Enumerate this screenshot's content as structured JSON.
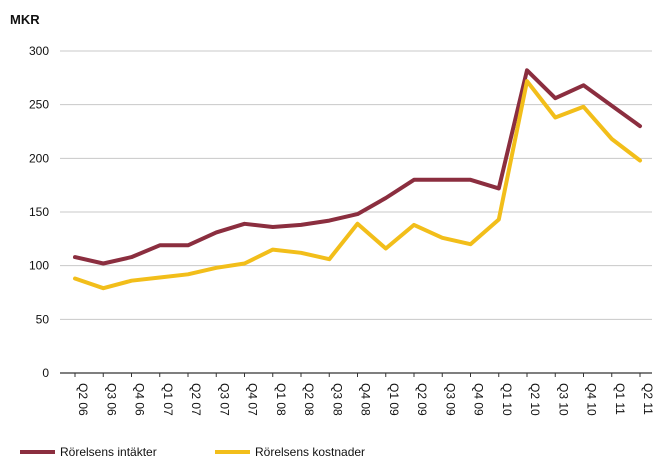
{
  "chart_data": {
    "type": "line",
    "title": "",
    "xlabel": "",
    "ylabel": "MKR",
    "ylim": [
      0,
      300
    ],
    "yticks": [
      0,
      50,
      100,
      150,
      200,
      250,
      300
    ],
    "grid": true,
    "legend_position": "bottom-left",
    "categories": [
      "Q2 06",
      "Q3 06",
      "Q4 06",
      "Q1 07",
      "Q2 07",
      "Q3 07",
      "Q4 07",
      "Q1 08",
      "Q2 08",
      "Q3 08",
      "Q4 08",
      "Q1 09",
      "Q2 09",
      "Q3 09",
      "Q4 09",
      "Q1 10",
      "Q2 10",
      "Q3 10",
      "Q4 10",
      "Q1 11",
      "Q2 11"
    ],
    "series": [
      {
        "name": "Rörelsens intäkter",
        "color": "#8b2e3f",
        "values": [
          108,
          102,
          108,
          119,
          119,
          131,
          139,
          136,
          138,
          142,
          148,
          163,
          180,
          180,
          180,
          172,
          282,
          256,
          268,
          249,
          230
        ]
      },
      {
        "name": "Rörelsens kostnader",
        "color": "#f2be1a",
        "values": [
          88,
          79,
          86,
          89,
          92,
          98,
          102,
          115,
          112,
          106,
          139,
          116,
          138,
          126,
          120,
          143,
          272,
          238,
          248,
          218,
          198
        ]
      }
    ]
  }
}
